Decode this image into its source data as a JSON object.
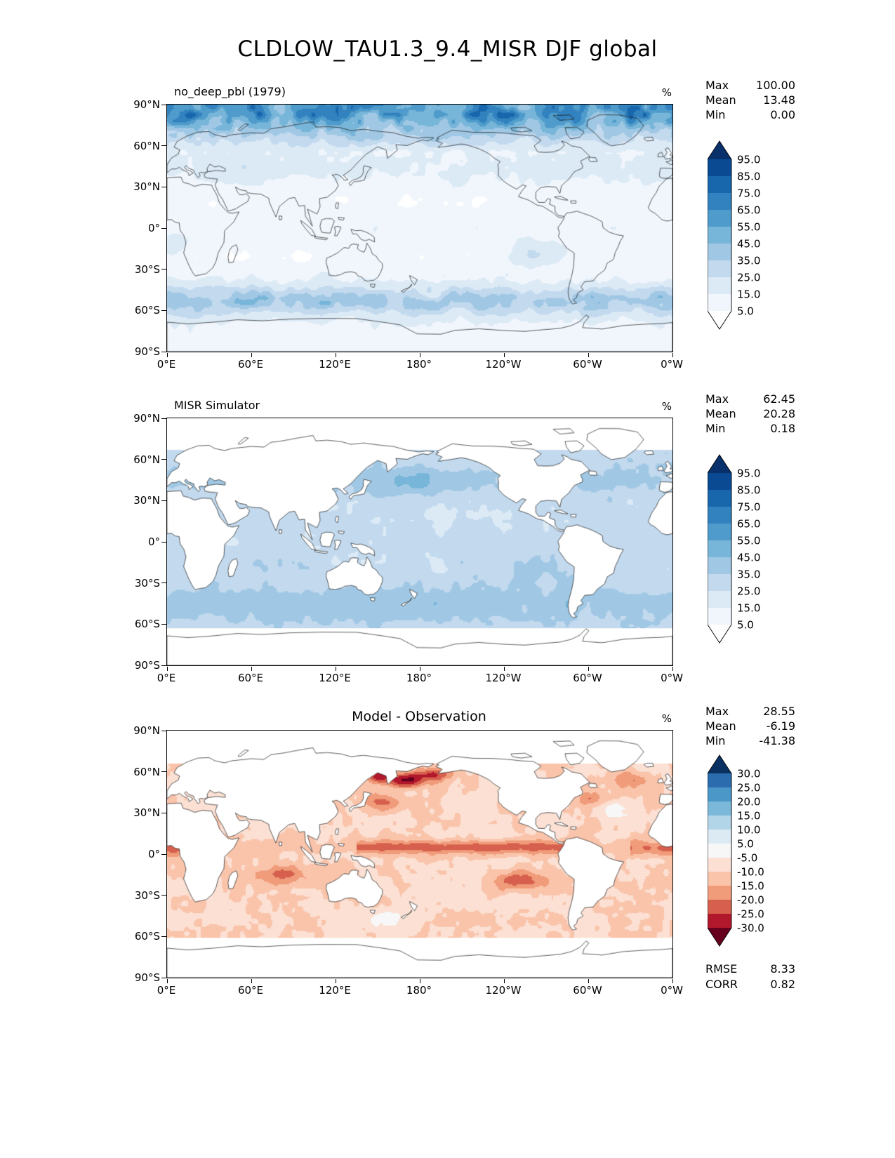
{
  "title": "CLDLOW_TAU1.3_9.4_MISR DJF global",
  "axis": {
    "x_ticks": [
      "0°E",
      "60°E",
      "120°E",
      "180°",
      "120°W",
      "60°W",
      "0°W"
    ],
    "y_ticks": [
      "90°N",
      "60°N",
      "30°N",
      "0°",
      "30°S",
      "60°S",
      "90°S"
    ]
  },
  "panels": [
    {
      "title": "no_deep_pbl (1979)",
      "unit": "%",
      "stats": [
        {
          "label": "Max",
          "value": "100.00"
        },
        {
          "label": "Mean",
          "value": "13.48"
        },
        {
          "label": "Min",
          "value": "0.00"
        }
      ],
      "colorbar": {
        "labels": [
          "95.0",
          "85.0",
          "75.0",
          "65.0",
          "55.0",
          "45.0",
          "35.0",
          "25.0",
          "15.0",
          "5.0"
        ],
        "colors_bottom_to_top": [
          "#ffffff",
          "#f0f6fc",
          "#dceaf6",
          "#c2d9ee",
          "#a0c8e4",
          "#77b5d9",
          "#4f9bcb",
          "#3182be",
          "#1866ab",
          "#0a4a92",
          "#08306b"
        ]
      }
    },
    {
      "title": "MISR Simulator",
      "unit": "%",
      "stats": [
        {
          "label": "Max",
          "value": "62.45"
        },
        {
          "label": "Mean",
          "value": "20.28"
        },
        {
          "label": "Min",
          "value": "0.18"
        }
      ],
      "colorbar": {
        "labels": [
          "95.0",
          "85.0",
          "75.0",
          "65.0",
          "55.0",
          "45.0",
          "35.0",
          "25.0",
          "15.0",
          "5.0"
        ],
        "colors_bottom_to_top": [
          "#ffffff",
          "#f0f6fc",
          "#dceaf6",
          "#c2d9ee",
          "#a0c8e4",
          "#77b5d9",
          "#4f9bcb",
          "#3182be",
          "#1866ab",
          "#0a4a92",
          "#08306b"
        ]
      }
    },
    {
      "title": "Model - Observation",
      "unit": "%",
      "stats": [
        {
          "label": "Max",
          "value": "28.55"
        },
        {
          "label": "Mean",
          "value": "-6.19"
        },
        {
          "label": "Min",
          "value": "-41.38"
        }
      ],
      "colorbar": {
        "labels": [
          "30.0",
          "25.0",
          "20.0",
          "15.0",
          "10.0",
          "5.0",
          "-5.0",
          "-10.0",
          "-15.0",
          "-20.0",
          "-25.0",
          "-30.0"
        ],
        "colors_bottom_to_top": [
          "#67001f",
          "#b2182b",
          "#d6604d",
          "#f09c7b",
          "#fac4ab",
          "#fbe0d3",
          "#f7f7f7",
          "#dcebf3",
          "#b3d5e8",
          "#7cb8da",
          "#4b98c8",
          "#2a6cad",
          "#0a3161"
        ]
      },
      "extra_stats": [
        {
          "label": "RMSE",
          "value": "8.33"
        },
        {
          "label": "CORR",
          "value": "0.82"
        }
      ]
    }
  ],
  "chart_data": [
    {
      "type": "heatmap",
      "subtype": "filled-contour-global-map",
      "title": "no_deep_pbl (1979)",
      "units": "%",
      "projection": "cylindrical equirectangular, longitude 0°E to 0°W (0-360), latitude 90°S to 90°N",
      "levels": [
        5,
        15,
        25,
        35,
        45,
        55,
        65,
        75,
        85,
        95
      ],
      "colormap": "Blues",
      "stats": {
        "max": 100.0,
        "mean": 13.48,
        "min": 0.0
      },
      "features": [
        "high low-cloud fraction 45-95% over Arctic ocean and high northern latitudes 60N-82N",
        "moderate 25-45% band over Southern Ocean 40S-65S",
        "low 5-20% over tropics, subtropical oceans and most land",
        "enhanced 25-40% marine stratocumulus off western South America and southwest Africa"
      ]
    },
    {
      "type": "heatmap",
      "subtype": "filled-contour-global-map",
      "title": "MISR Simulator",
      "units": "%",
      "projection": "cylindrical equirectangular, longitude 0°E to 0°W (0-360), latitude 90°S to 90°N",
      "levels": [
        5,
        15,
        25,
        35,
        45,
        55,
        65,
        75,
        85,
        95
      ],
      "colormap": "Blues",
      "stats": {
        "max": 62.45,
        "mean": 20.28,
        "min": 0.18
      },
      "features": [
        "no retrievals (white) poleward of about 67N and 62S and over land",
        "broad 25-45% low cloud over most oceans 60S-60N",
        "darker 35-55% over Southern Ocean, south Indian Ocean, northwest Pacific and southeast Pacific"
      ]
    },
    {
      "type": "heatmap",
      "subtype": "filled-contour-global-map-difference",
      "title": "Model - Observation",
      "units": "%",
      "projection": "cylindrical equirectangular, longitude 0°E to 0°W (0-360), latitude 90°S to 90°N",
      "levels": [
        -30,
        -25,
        -20,
        -15,
        -10,
        -5,
        5,
        10,
        15,
        20,
        25,
        30
      ],
      "colormap": "RdBu",
      "stats": {
        "max": 28.55,
        "mean": -6.19,
        "min": -41.38,
        "rmse": 8.33,
        "corr": 0.82
      },
      "features": [
        "widespread negative bias -5 to -15% over most oceans",
        "strong negative bias -20 to -41% over northwest Pacific, Sea of Okhotsk and Bering Sea",
        "strong negative band along tropical Pacific ITCZ and south Indian Ocean",
        "strong negative patch in southeast Pacific near 20S",
        "scattered weak positive bias (light blue) in subtropical North Atlantic and south of Australia"
      ]
    }
  ]
}
